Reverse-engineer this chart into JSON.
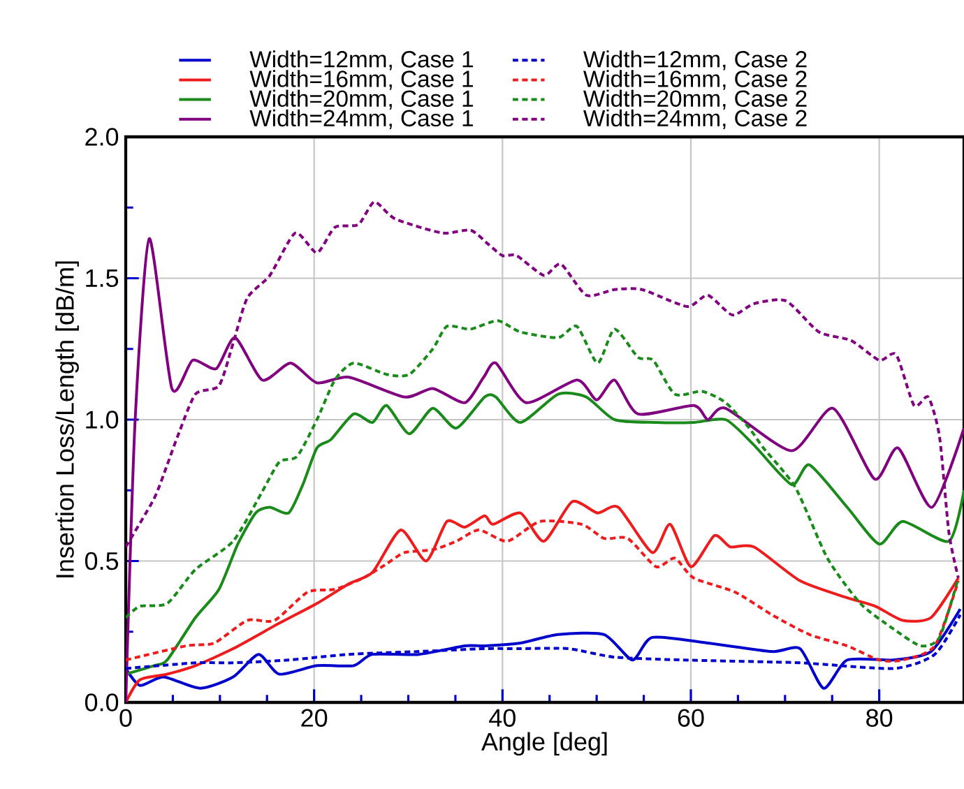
{
  "chart_data": {
    "type": "line",
    "xlabel": "Angle [deg]",
    "ylabel": "Insertion Loss/Length [dB/m]",
    "xlim": [
      0,
      89
    ],
    "ylim": [
      0,
      2
    ],
    "xticks": [
      0,
      20,
      40,
      60,
      80
    ],
    "yticks": [
      {
        "value": 0,
        "label": "0.0"
      },
      {
        "value": 0.5,
        "label": "0.5"
      },
      {
        "value": 1,
        "label": "1.0"
      },
      {
        "value": 1.5,
        "label": "1.5"
      },
      {
        "value": 2,
        "label": "2.0"
      }
    ],
    "grid": true,
    "legend": "top",
    "marker": "none",
    "series": [
      {
        "name": "Width=12mm, Case 1",
        "color": "#0000cc",
        "line_style": "solid",
        "x": [
          0,
          1.5,
          4,
          7.9,
          11.4,
          14.1,
          16.3,
          20.3,
          24.2,
          26.2,
          31.1,
          36,
          38.1,
          41.9,
          45.9,
          50.8,
          53.8,
          55.9,
          61.8,
          68.6,
          71.6,
          74.1,
          76.6,
          81.5,
          85.5,
          88.6
        ],
        "values": [
          0.12,
          0.06,
          0.09,
          0.05,
          0.09,
          0.17,
          0.1,
          0.13,
          0.13,
          0.17,
          0.17,
          0.2,
          0.2,
          0.21,
          0.24,
          0.24,
          0.15,
          0.23,
          0.21,
          0.18,
          0.19,
          0.05,
          0.15,
          0.15,
          0.18,
          0.33
        ]
      },
      {
        "name": "Width=16mm, Case 1",
        "color": "#ee1c1c",
        "line_style": "solid",
        "x": [
          0,
          1.5,
          4.4,
          7.4,
          11.4,
          16.3,
          20.3,
          23.7,
          26.2,
          29.2,
          31.9,
          34.1,
          36,
          38.1,
          39,
          41.9,
          44.4,
          47.4,
          50.1,
          52.3,
          55.9,
          57.8,
          60,
          62.5,
          64.2,
          66.7,
          71.6,
          76.6,
          79.6,
          82.5,
          85.5,
          88.4
        ],
        "values": [
          0,
          0.08,
          0.1,
          0.13,
          0.19,
          0.28,
          0.35,
          0.42,
          0.46,
          0.61,
          0.5,
          0.64,
          0.62,
          0.66,
          0.63,
          0.67,
          0.57,
          0.71,
          0.67,
          0.69,
          0.53,
          0.63,
          0.48,
          0.59,
          0.55,
          0.55,
          0.43,
          0.37,
          0.34,
          0.29,
          0.3,
          0.44
        ]
      },
      {
        "name": "Width=20mm, Case 1",
        "color": "#1a8a1a",
        "line_style": "solid",
        "x": [
          0,
          3,
          4.4,
          7.4,
          9.9,
          11.9,
          13.8,
          15.3,
          17.3,
          18.8,
          20.3,
          21.8,
          24.2,
          26.2,
          27.7,
          30.1,
          32.6,
          35.1,
          38.1,
          39.3,
          41.9,
          45.9,
          48.9,
          51.9,
          56.3,
          60.3,
          63.7,
          66.7,
          70.7,
          72.6,
          76.6,
          80,
          82.5,
          87.4,
          89
        ],
        "values": [
          0.1,
          0.13,
          0.15,
          0.3,
          0.4,
          0.56,
          0.67,
          0.69,
          0.67,
          0.77,
          0.9,
          0.93,
          1.02,
          0.99,
          1.05,
          0.95,
          1.04,
          0.97,
          1.08,
          1.08,
          0.99,
          1.09,
          1.08,
          1.0,
          0.99,
          0.99,
          1.0,
          0.91,
          0.77,
          0.84,
          0.69,
          0.56,
          0.64,
          0.57,
          0.75
        ]
      },
      {
        "name": "Width=24mm, Case 1",
        "color": "#800080",
        "line_style": "solid",
        "x": [
          0,
          1,
          2.5,
          4.9,
          7.1,
          9.6,
          11.6,
          14.5,
          17.5,
          20.3,
          23.7,
          29.6,
          32.6,
          36,
          38,
          39.3,
          42.5,
          47.9,
          50,
          51.9,
          54.4,
          60.3,
          61.8,
          63.7,
          70.7,
          75.1,
          79.5,
          82,
          85.6,
          89
        ],
        "values": [
          0,
          1.0,
          1.64,
          1.11,
          1.21,
          1.18,
          1.29,
          1.14,
          1.2,
          1.13,
          1.15,
          1.08,
          1.11,
          1.06,
          1.15,
          1.2,
          1.06,
          1.14,
          1.07,
          1.14,
          1.02,
          1.05,
          1.0,
          1.04,
          0.89,
          1.04,
          0.79,
          0.9,
          0.69,
          0.97
        ]
      },
      {
        "name": "Width=12mm, Case 2",
        "color": "#0000cc",
        "line_style": "dashed",
        "x": [
          0,
          7.4,
          11.4,
          17.3,
          23.7,
          31.1,
          38.1,
          41.9,
          47,
          51.9,
          59.3,
          71.6,
          81.5,
          85.9,
          88.6
        ],
        "values": [
          0.12,
          0.14,
          0.14,
          0.15,
          0.17,
          0.18,
          0.19,
          0.19,
          0.19,
          0.16,
          0.15,
          0.14,
          0.12,
          0.17,
          0.31
        ]
      },
      {
        "name": "Width=16mm, Case 2",
        "color": "#ee1c1c",
        "line_style": "dashed",
        "x": [
          0,
          6.4,
          9.4,
          12.9,
          15.8,
          19.3,
          22.2,
          25.2,
          27.7,
          29.6,
          32.6,
          35.1,
          37.5,
          40.5,
          44,
          48.4,
          50.8,
          53.3,
          56.3,
          58.3,
          60.3,
          64.7,
          68.6,
          72.6,
          76.6,
          80,
          82.5,
          85.9,
          88.4
        ],
        "values": [
          0.15,
          0.2,
          0.21,
          0.29,
          0.29,
          0.39,
          0.4,
          0.44,
          0.49,
          0.53,
          0.54,
          0.57,
          0.61,
          0.57,
          0.64,
          0.63,
          0.58,
          0.58,
          0.48,
          0.51,
          0.44,
          0.39,
          0.31,
          0.24,
          0.2,
          0.15,
          0.15,
          0.2,
          0.43
        ]
      },
      {
        "name": "Width=20mm, Case 2",
        "color": "#1a8a1a",
        "line_style": "dashed",
        "x": [
          0,
          1.5,
          4.4,
          7.4,
          11.4,
          14.4,
          16.3,
          18.2,
          20.3,
          22.2,
          24.2,
          27.7,
          30.1,
          32.6,
          34.1,
          36.6,
          39.5,
          41.9,
          45.9,
          47.9,
          50.1,
          51.9,
          54.4,
          56,
          58.3,
          61.2,
          63.7,
          66.2,
          67.7,
          71.1,
          74.5,
          78,
          81.5,
          84.4,
          86.4,
          88.4
        ],
        "values": [
          0.3,
          0.34,
          0.35,
          0.47,
          0.57,
          0.74,
          0.85,
          0.87,
          1.0,
          1.14,
          1.2,
          1.16,
          1.16,
          1.25,
          1.33,
          1.32,
          1.35,
          1.31,
          1.29,
          1.33,
          1.2,
          1.32,
          1.22,
          1.21,
          1.09,
          1.1,
          1.06,
          0.97,
          0.9,
          0.76,
          0.51,
          0.35,
          0.26,
          0.2,
          0.23,
          0.44
        ]
      },
      {
        "name": "Width=24mm, Case 2",
        "color": "#800080",
        "line_style": "dashed",
        "x": [
          0,
          3,
          4.4,
          5.5,
          7.4,
          9.9,
          11.4,
          12.9,
          15.3,
          18,
          20.3,
          22.2,
          24.7,
          26.4,
          28.6,
          33.6,
          36.6,
          38.5,
          40,
          41.5,
          44.4,
          46.2,
          48.9,
          51.9,
          54.8,
          59.6,
          61.8,
          64.4,
          66.7,
          70.1,
          73.6,
          77,
          80,
          81.8,
          83.7,
          85.2,
          86.4,
          87.4,
          88.4
        ],
        "values": [
          0.55,
          0.72,
          0.84,
          0.94,
          1.09,
          1.12,
          1.27,
          1.43,
          1.51,
          1.66,
          1.59,
          1.68,
          1.69,
          1.77,
          1.71,
          1.66,
          1.67,
          1.62,
          1.58,
          1.58,
          1.51,
          1.55,
          1.44,
          1.46,
          1.46,
          1.4,
          1.44,
          1.37,
          1.41,
          1.42,
          1.31,
          1.28,
          1.21,
          1.23,
          1.05,
          1.08,
          0.94,
          0.6,
          0.44
        ]
      }
    ]
  }
}
